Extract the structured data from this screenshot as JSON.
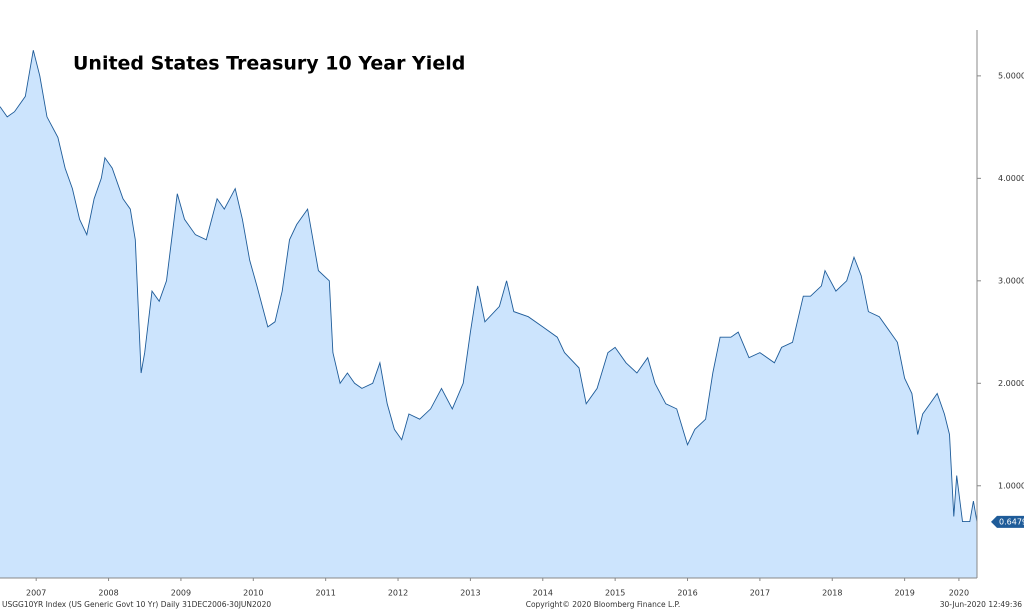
{
  "chart_data": {
    "type": "area",
    "title": "United States Treasury 10 Year Yield",
    "source": "USGG10YR Index (US Generic Govt 10 Yr)  Daily 31DEC2006-30JUN2020",
    "copyright": "Copyright© 2020 Bloomberg Finance L.P.",
    "timestamp": "30-Jun-2020 12:49:36",
    "color": "#1f5c99",
    "fill": "#cce4fd",
    "x": [
      2007.0,
      2007.1,
      2007.2,
      2007.35,
      2007.46,
      2007.55,
      2007.65,
      2007.8,
      2007.9,
      2008.0,
      2008.1,
      2008.2,
      2008.3,
      2008.4,
      2008.45,
      2008.55,
      2008.7,
      2008.8,
      2008.87,
      2008.95,
      2009.0,
      2009.1,
      2009.2,
      2009.3,
      2009.45,
      2009.55,
      2009.7,
      2009.85,
      2010.0,
      2010.1,
      2010.25,
      2010.35,
      2010.45,
      2010.55,
      2010.7,
      2010.8,
      2010.9,
      2011.0,
      2011.1,
      2011.25,
      2011.4,
      2011.55,
      2011.6,
      2011.7,
      2011.8,
      2011.9,
      2012.0,
      2012.15,
      2012.25,
      2012.35,
      2012.45,
      2012.55,
      2012.65,
      2012.8,
      2012.95,
      2013.1,
      2013.25,
      2013.4,
      2013.5,
      2013.6,
      2013.7,
      2013.9,
      2014.0,
      2014.1,
      2014.3,
      2014.5,
      2014.7,
      2014.8,
      2015.0,
      2015.1,
      2015.25,
      2015.4,
      2015.5,
      2015.65,
      2015.8,
      2015.95,
      2016.05,
      2016.2,
      2016.35,
      2016.5,
      2016.6,
      2016.75,
      2016.85,
      2016.95,
      2017.1,
      2017.2,
      2017.35,
      2017.5,
      2017.7,
      2017.8,
      2017.95,
      2018.1,
      2018.2,
      2018.35,
      2018.4,
      2018.55,
      2018.7,
      2018.8,
      2018.9,
      2019.0,
      2019.15,
      2019.3,
      2019.4,
      2019.5,
      2019.6,
      2019.68,
      2019.75,
      2019.85,
      2019.95,
      2020.05,
      2020.12,
      2020.18,
      2020.22,
      2020.3,
      2020.4,
      2020.45,
      2020.5
    ],
    "values": [
      4.7,
      4.6,
      4.65,
      4.8,
      5.25,
      5.0,
      4.6,
      4.4,
      4.1,
      3.9,
      3.6,
      3.45,
      3.8,
      4.0,
      4.2,
      4.1,
      3.8,
      3.7,
      3.4,
      2.1,
      2.3,
      2.9,
      2.8,
      3.0,
      3.85,
      3.6,
      3.45,
      3.4,
      3.8,
      3.7,
      3.9,
      3.6,
      3.2,
      2.95,
      2.55,
      2.6,
      2.9,
      3.4,
      3.55,
      3.7,
      3.1,
      3.0,
      2.3,
      2.0,
      2.1,
      2.0,
      1.95,
      2.0,
      2.2,
      1.8,
      1.55,
      1.45,
      1.7,
      1.65,
      1.75,
      1.95,
      1.75,
      2.0,
      2.5,
      2.95,
      2.6,
      2.75,
      3.0,
      2.7,
      2.65,
      2.55,
      2.45,
      2.3,
      2.15,
      1.8,
      1.95,
      2.3,
      2.35,
      2.2,
      2.1,
      2.25,
      2.0,
      1.8,
      1.75,
      1.4,
      1.55,
      1.65,
      2.1,
      2.45,
      2.45,
      2.5,
      2.25,
      2.3,
      2.2,
      2.35,
      2.4,
      2.85,
      2.85,
      2.95,
      3.1,
      2.9,
      3.0,
      3.23,
      3.05,
      2.7,
      2.65,
      2.5,
      2.4,
      2.05,
      1.9,
      1.5,
      1.7,
      1.8,
      1.9,
      1.7,
      1.5,
      0.7,
      1.1,
      0.65,
      0.65,
      0.85,
      0.6479
    ],
    "xlim": [
      2007.0,
      2020.5
    ],
    "xticks": [
      {
        "value": 2007.5,
        "label": "2007"
      },
      {
        "value": 2008.5,
        "label": "2008"
      },
      {
        "value": 2009.5,
        "label": "2009"
      },
      {
        "value": 2010.5,
        "label": "2010"
      },
      {
        "value": 2011.5,
        "label": "2011"
      },
      {
        "value": 2012.5,
        "label": "2012"
      },
      {
        "value": 2013.5,
        "label": "2013"
      },
      {
        "value": 2014.5,
        "label": "2014"
      },
      {
        "value": 2015.5,
        "label": "2015"
      },
      {
        "value": 2016.5,
        "label": "2016"
      },
      {
        "value": 2017.5,
        "label": "2017"
      },
      {
        "value": 2018.5,
        "label": "2018"
      },
      {
        "value": 2019.5,
        "label": "2019"
      },
      {
        "value": 2020.25,
        "label": "2020"
      }
    ],
    "ylim": [
      0.1,
      5.35
    ],
    "yticks": [
      {
        "value": 1,
        "label": "1.0000"
      },
      {
        "value": 2,
        "label": "2.0000"
      },
      {
        "value": 3,
        "label": "3.0000"
      },
      {
        "value": 4,
        "label": "4.0000"
      },
      {
        "value": 5,
        "label": "5.0000"
      }
    ]
  }
}
